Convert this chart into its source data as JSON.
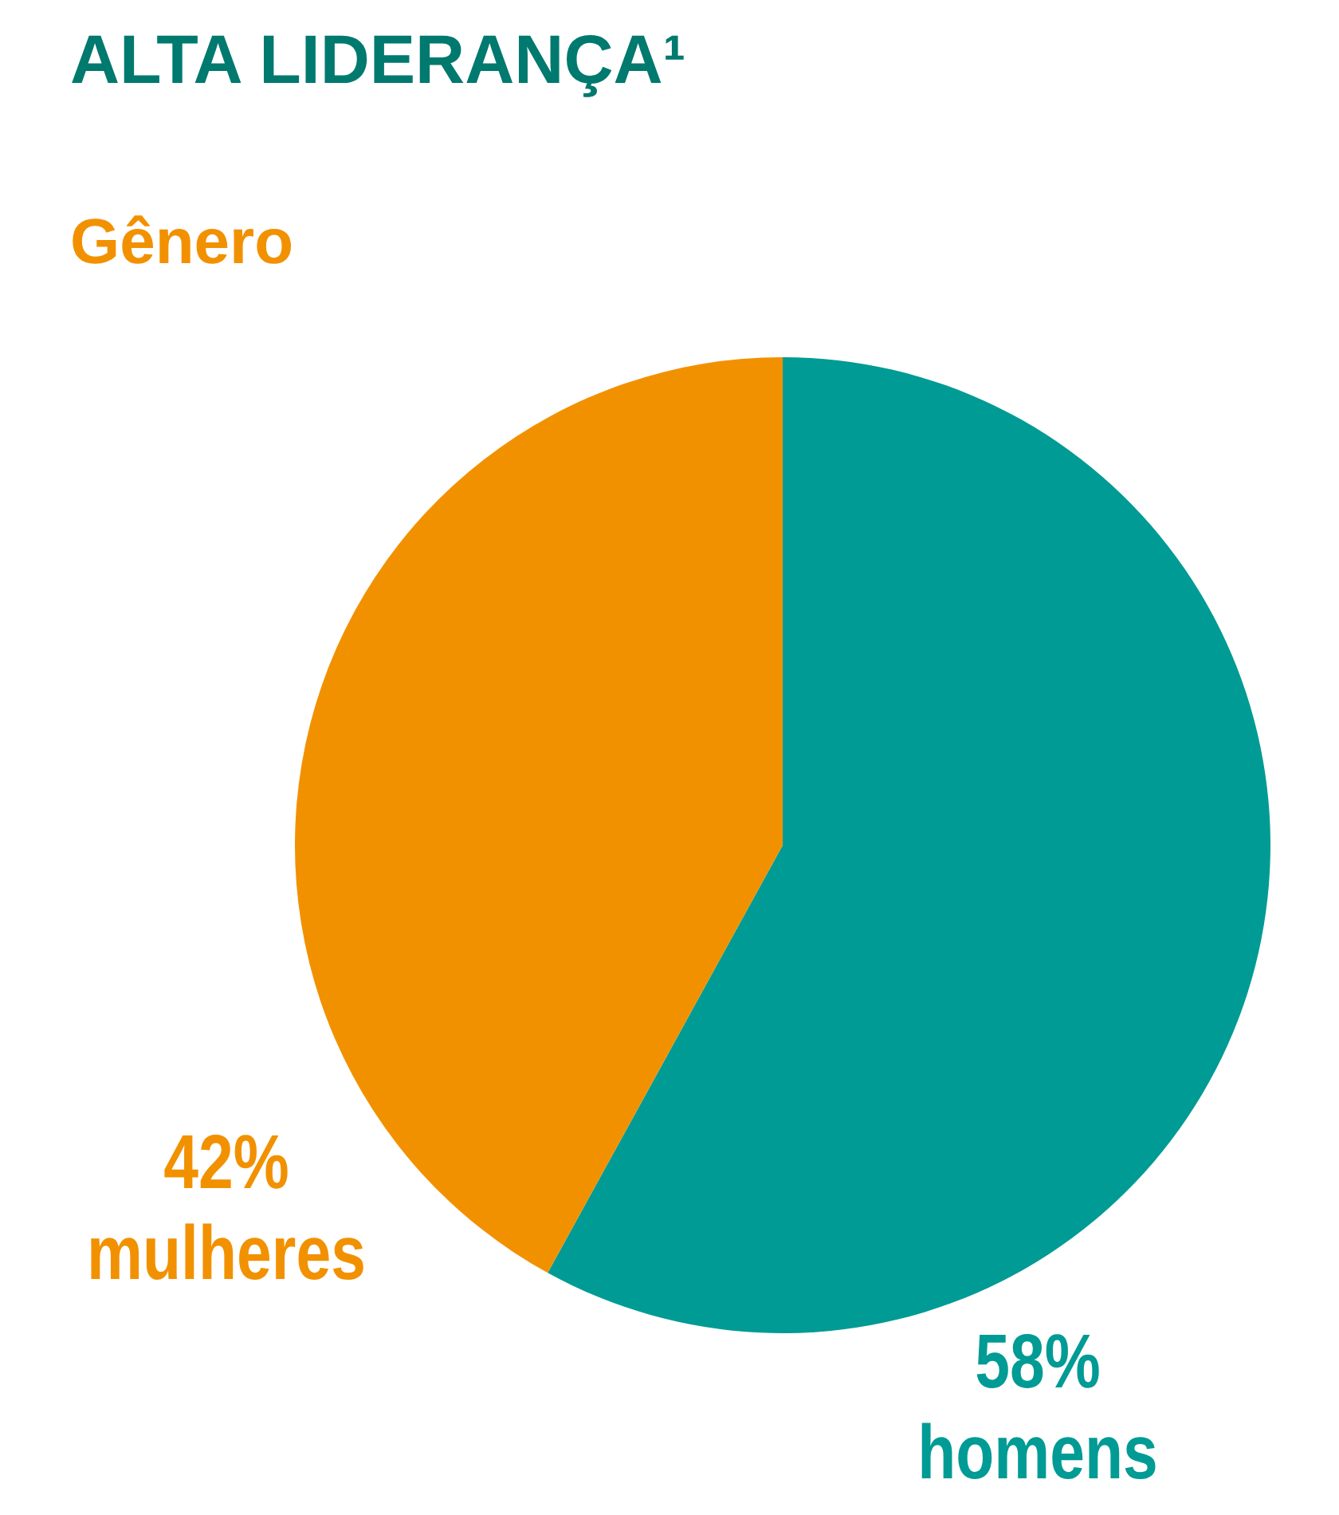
{
  "chart_data": {
    "type": "pie",
    "title": "ALTA LIDERANÇA¹",
    "subtitle": "Gênero",
    "categories": [
      "homens",
      "mulheres"
    ],
    "values": [
      58,
      42
    ],
    "colors": [
      "#009b94",
      "#f29100"
    ],
    "value_labels": [
      "58%",
      "42%"
    ]
  }
}
